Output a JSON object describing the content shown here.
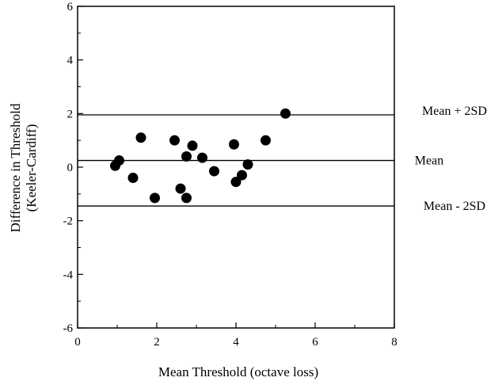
{
  "chart_data": {
    "type": "scatter",
    "title": "",
    "xlabel": "Mean Threshold (octave loss)",
    "ylabel_line1": "Difference in Threshold",
    "ylabel_line2": "(Keeler-Cardiff)",
    "xlim": [
      0,
      8
    ],
    "ylim": [
      -6,
      6
    ],
    "x_ticks": [
      0,
      2,
      4,
      6,
      8
    ],
    "x_tick_labels": [
      "0",
      "2",
      "4",
      "6",
      "8"
    ],
    "y_ticks": [
      -6,
      -4,
      -2,
      0,
      2,
      4,
      6
    ],
    "y_tick_labels": [
      "-6",
      "-4",
      "-2",
      "0",
      "2",
      "4",
      "6"
    ],
    "grid": false,
    "points": [
      {
        "x": 0.95,
        "y": 0.05
      },
      {
        "x": 1.05,
        "y": 0.25
      },
      {
        "x": 1.4,
        "y": -0.4
      },
      {
        "x": 1.6,
        "y": 1.1
      },
      {
        "x": 1.95,
        "y": -1.15
      },
      {
        "x": 2.45,
        "y": 1.0
      },
      {
        "x": 2.6,
        "y": -0.8
      },
      {
        "x": 2.75,
        "y": 0.4
      },
      {
        "x": 2.75,
        "y": -1.15
      },
      {
        "x": 2.9,
        "y": 0.8
      },
      {
        "x": 3.15,
        "y": 0.35
      },
      {
        "x": 3.45,
        "y": -0.15
      },
      {
        "x": 3.95,
        "y": 0.85
      },
      {
        "x": 4.0,
        "y": -0.55
      },
      {
        "x": 4.15,
        "y": -0.3
      },
      {
        "x": 4.3,
        "y": 0.1
      },
      {
        "x": 4.75,
        "y": 1.0
      },
      {
        "x": 5.25,
        "y": 2.0
      }
    ],
    "reference_lines": [
      {
        "y": 1.95,
        "label": "Mean + 2SD"
      },
      {
        "y": 0.25,
        "label": "Mean"
      },
      {
        "y": -1.45,
        "label": "Mean - 2SD"
      }
    ]
  }
}
